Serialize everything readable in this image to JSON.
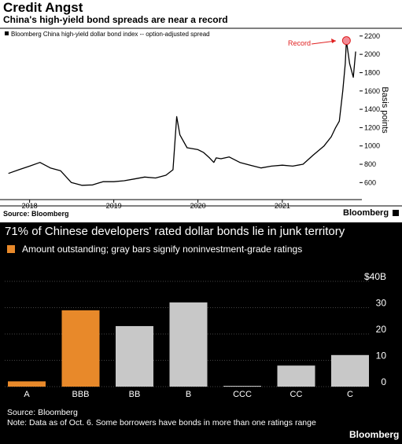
{
  "top_chart": {
    "title": "Credit Angst",
    "subtitle": "China's high-yield bond spreads are near a record",
    "source": "Source: Bloomberg",
    "brand": "Bloomberg"
  },
  "bottom_chart": {
    "title": "71% of Chinese developers' rated dollar bonds lie in junk territory",
    "legend": "Amount outstanding; gray bars signify noninvestment-grade ratings",
    "source_line1": "Source: Bloomberg",
    "source_line2": "Note: Data as of Oct. 6. Some borrowers have bonds in more than one ratings range",
    "brand": "Bloomberg"
  },
  "colors": {
    "line": "#000000",
    "record_marker": "#f28b96",
    "record_label": "#e02020",
    "investment_grade_bar": "#e8892a",
    "junk_bar": "#c8c8c8",
    "bottom_background": "#000000"
  },
  "chart_data": [
    {
      "type": "line",
      "legend_label": "Bloomberg China high-yield dollar bond index -- option-adjusted spread",
      "ylabel": "Basis points",
      "ylim": [
        500,
        2250
      ],
      "y_ticks": [
        600,
        800,
        1000,
        1200,
        1400,
        1600,
        1800,
        2000,
        2200
      ],
      "x_ticks": [
        "2018",
        "2019",
        "2020",
        "2021"
      ],
      "y_axis_side": "right",
      "annotation": "Record",
      "series": [
        {
          "x": [
            "2017-10-01",
            "2017-11-15",
            "2018-01-01",
            "2018-02-15",
            "2018-04-01",
            "2018-05-15",
            "2018-07-01",
            "2018-08-15",
            "2018-10-01",
            "2018-11-15",
            "2019-01-01",
            "2019-02-15",
            "2019-04-01",
            "2019-05-15",
            "2019-07-01",
            "2019-08-15",
            "2019-09-15",
            "2019-10-01",
            "2019-10-15",
            "2019-11-15",
            "2020-01-01",
            "2020-01-25",
            "2020-02-20",
            "2020-03-10",
            "2020-03-20",
            "2020-04-10",
            "2020-05-15",
            "2020-07-01",
            "2020-08-15",
            "2020-10-01",
            "2020-11-15",
            "2021-01-01",
            "2021-02-15",
            "2021-04-01",
            "2021-05-15",
            "2021-07-01",
            "2021-08-01",
            "2021-08-20",
            "2021-09-05",
            "2021-09-20",
            "2021-10-01",
            "2021-10-06",
            "2021-10-20",
            "2021-11-05",
            "2021-11-15"
          ],
          "y": [
            700,
            740,
            780,
            820,
            760,
            730,
            600,
            570,
            575,
            610,
            610,
            620,
            640,
            660,
            650,
            680,
            740,
            1320,
            1120,
            980,
            960,
            930,
            870,
            820,
            870,
            860,
            880,
            820,
            790,
            760,
            780,
            790,
            780,
            800,
            900,
            1000,
            1100,
            1200,
            1270,
            1600,
            1900,
            2150,
            1900,
            1750,
            2030
          ]
        }
      ]
    },
    {
      "type": "bar",
      "categories": [
        "A",
        "BBB",
        "BB",
        "B",
        "CCC",
        "CC",
        "C"
      ],
      "values": [
        2,
        29,
        23,
        32,
        0.3,
        8,
        12
      ],
      "grade": [
        "investment",
        "investment",
        "junk",
        "junk",
        "junk",
        "junk",
        "junk"
      ],
      "y_ticks": [
        0,
        10,
        20,
        30,
        40
      ],
      "y_tick_labels": [
        "0",
        "10",
        "20",
        "30",
        "$40B"
      ],
      "ylim": [
        0,
        40
      ],
      "y_axis_side": "right"
    }
  ]
}
